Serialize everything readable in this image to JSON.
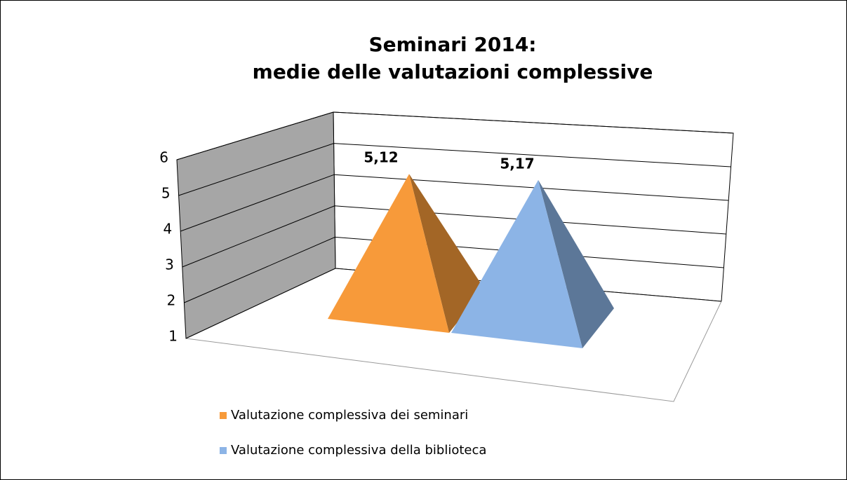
{
  "chart_data": {
    "type": "pyramid",
    "title": [
      "Seminari 2014:",
      "medie delle valutazioni complessive"
    ],
    "series": [
      {
        "name": "Valutazione complessiva dei seminari",
        "color": "#f79a3a",
        "values": [
          5.12
        ],
        "value_labels": [
          "5,12"
        ]
      },
      {
        "name": "Valutazione complessiva della biblioteca",
        "color": "#8cb4e6",
        "values": [
          5.17
        ],
        "value_labels": [
          "5,17"
        ]
      }
    ],
    "ylim": [
      1,
      6
    ],
    "yticks": [
      1,
      2,
      3,
      4,
      5,
      6
    ],
    "grid": true,
    "legend": "bottom"
  }
}
